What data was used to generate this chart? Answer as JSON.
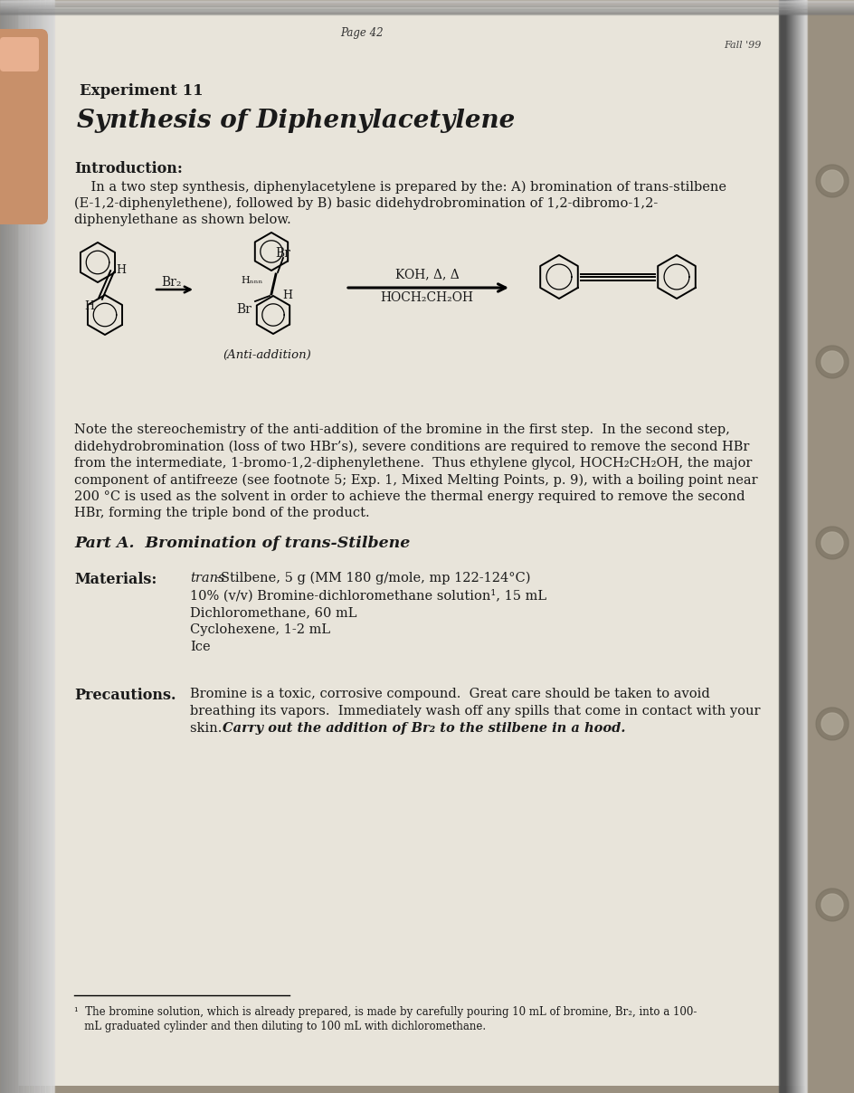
{
  "page_num": "Page 42",
  "fall_text": "Fall '99",
  "experiment_num": "Experiment 11",
  "title": "Synthesis of Diphenylacetylene",
  "intro_header": "Introduction:",
  "intro_line1": "    In a two step synthesis, diphenylacetylene is prepared by the: A) bromination of trans-stilbene",
  "intro_line2": "(E-1,2-diphenylethene), followed by B) basic didehydrobromination of 1,2-dibromo-1,2-",
  "intro_line3": "diphenylethane as shown below.",
  "koh_label": "KOH, Δ, Δ",
  "hoch_label": "HOCH₂CH₂OH",
  "br2_label": "Br₂",
  "anti_label": "(Anti-addition)",
  "note_line1": "Note the stereochemistry of the anti-addition of the bromine in the first step.  In the second step,",
  "note_line2": "didehydrobromination (loss of two HBr’s), severe conditions are required to remove the second HBr",
  "note_line3": "from the intermediate, 1-bromo-1,2-diphenylethene.  Thus ethylene glycol, HOCH₂CH₂OH, the major",
  "note_line4": "component of antifreeze (see footnote 5; Exp. 1, Mixed Melting Points, p. 9), with a boiling point near",
  "note_line5": "200 °C is used as the solvent in order to achieve the thermal energy required to remove the second",
  "note_line6": "HBr, forming the triple bond of the product.",
  "part_a": "Part A.  Bromination of trans-Stilbene",
  "mat_label": "Materials:",
  "mat1_italic": "trans",
  "mat1_rest": "-Stilbene, 5 g (MM 180 g/mole, mp 122-124°C)",
  "mat2": "10% (v/v) Bromine-dichloromethane solution¹, 15 mL",
  "mat3": "Dichloromethane, 60 mL",
  "mat4": "Cyclohexene, 1-2 mL",
  "mat5": "Ice",
  "prec_label": "Precautions.",
  "prec1": "Bromine is a toxic, corrosive compound.  Great care should be taken to avoid",
  "prec2": "breathing its vapors.  Immediately wash off any spills that come in contact with your",
  "prec3": "skin.  ",
  "prec3_bold": "Carry out the addition of Br₂ to the stilbene in a hood.",
  "fn1": "¹  The bromine solution, which is already prepared, is made by carefully pouring 10 mL of bromine, Br₂, into a 100-",
  "fn2": "   mL graduated cylinder and then diluting to 100 mL with dichloromethane.",
  "bg_outer": "#9a9080",
  "bg_left": "#c0b8a8",
  "bg_page": "#e8e4da",
  "bg_page_right": "#d0ccc0",
  "text_dark": "#1a1a1a"
}
